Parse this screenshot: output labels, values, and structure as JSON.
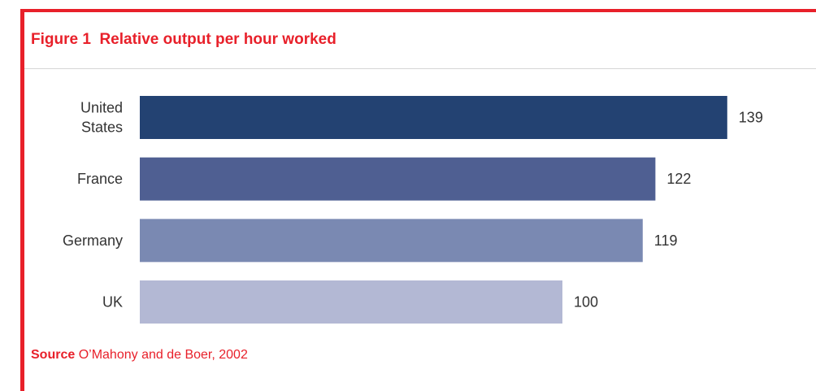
{
  "figure": {
    "title": "Figure 1  Relative output per hour worked"
  },
  "source": {
    "label": "Source",
    "text": " O’Mahony and de Boer, 2002"
  },
  "chart_data": {
    "type": "bar",
    "orientation": "horizontal",
    "title": "Figure 1  Relative output per hour worked",
    "xlabel": "",
    "ylabel": "",
    "categories": [
      [
        "United",
        "States"
      ],
      [
        "France"
      ],
      [
        "Germany"
      ],
      [
        "UK"
      ]
    ],
    "values": [
      139,
      122,
      119,
      100
    ],
    "xlim": [
      0,
      140
    ],
    "grid": false,
    "legend": "none",
    "colors": [
      "#234272",
      "#4f5f92",
      "#7a89b2",
      "#b3b8d4"
    ]
  }
}
